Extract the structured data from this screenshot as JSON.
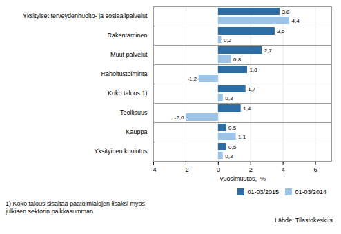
{
  "chart_data": {
    "type": "bar",
    "orientation": "horizontal",
    "categories": [
      "Yksityiset terveydenhuolto- ja sosiaalipalvelut",
      "Rakentaminen",
      "Muut palvelut",
      "Rahoitustoiminta",
      "Koko talous 1)",
      "Teollisuus",
      "Kauppa",
      "Yksityinen koulutus"
    ],
    "series": [
      {
        "name": "01-03/2015",
        "color": "#2E6DA4",
        "values": [
          3.8,
          3.5,
          2.7,
          1.8,
          1.7,
          1.4,
          0.5,
          0.5
        ],
        "value_labels": [
          "3,8",
          "3,5",
          "2,7",
          "1,8",
          "1,7",
          "1,4",
          "0,5",
          "0,5"
        ]
      },
      {
        "name": "01-03/2014",
        "color": "#9DC3E6",
        "values": [
          4.4,
          0.2,
          0.8,
          -1.2,
          0.3,
          -2.0,
          1.1,
          0.3
        ],
        "value_labels": [
          "4,4",
          "0,2",
          "0,8",
          "-1,2",
          "0,3",
          "-2,0",
          "1,1",
          "0,3"
        ]
      }
    ],
    "xlabel": "Vuosimuutos,  %",
    "xlim": [
      -4,
      7
    ],
    "xticks": [
      -4,
      -2,
      0,
      2,
      4,
      6
    ],
    "grid": true,
    "legend": "lower right",
    "data_labels": true,
    "footnote": "1) Koko talous sisältää päätoimialojen lisäksi myös\njulkisen sektorin palkkasumman",
    "source": "Lähde:  Tilastokeskus"
  }
}
